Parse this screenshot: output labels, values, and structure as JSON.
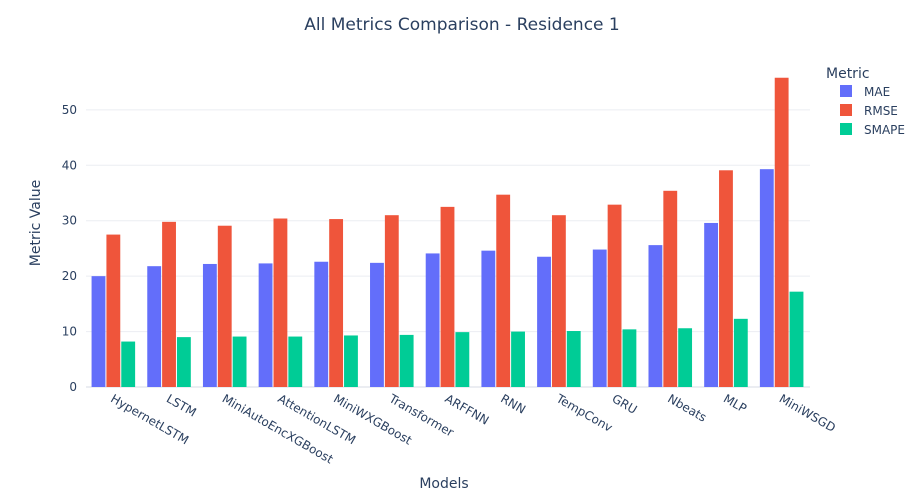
{
  "chart_data": {
    "type": "bar",
    "title": "All Metrics Comparison - Residence 1",
    "xlabel": "Models",
    "ylabel": "Metric Value",
    "ylim": [
      0,
      59
    ],
    "yticks": [
      0,
      10,
      20,
      30,
      40,
      50
    ],
    "legend_title": "Metric",
    "legend_position": "top-right",
    "categories": [
      "HypernetLSTM",
      "LSTM",
      "MiniAutoEncXGBoost",
      "AttentionLSTM",
      "MiniWXGBoost",
      "Transformer",
      "ARFFNN",
      "RNN",
      "TempConv",
      "GRU",
      "Nbeats",
      "MLP",
      "MiniWSGD"
    ],
    "series": [
      {
        "name": "MAE",
        "color": "#636efa",
        "values": [
          20.0,
          21.8,
          22.2,
          22.3,
          22.6,
          22.4,
          24.1,
          24.6,
          23.5,
          24.8,
          25.6,
          29.6,
          39.3
        ]
      },
      {
        "name": "RMSE",
        "color": "#ef553b",
        "values": [
          27.5,
          29.8,
          29.1,
          30.4,
          30.3,
          31.0,
          32.5,
          34.7,
          31.0,
          32.9,
          35.4,
          39.1,
          55.8
        ]
      },
      {
        "name": "SMAPE",
        "color": "#00cc96",
        "values": [
          8.2,
          9.0,
          9.1,
          9.1,
          9.3,
          9.4,
          9.9,
          10.0,
          10.1,
          10.4,
          10.6,
          12.3,
          17.2
        ]
      }
    ]
  }
}
